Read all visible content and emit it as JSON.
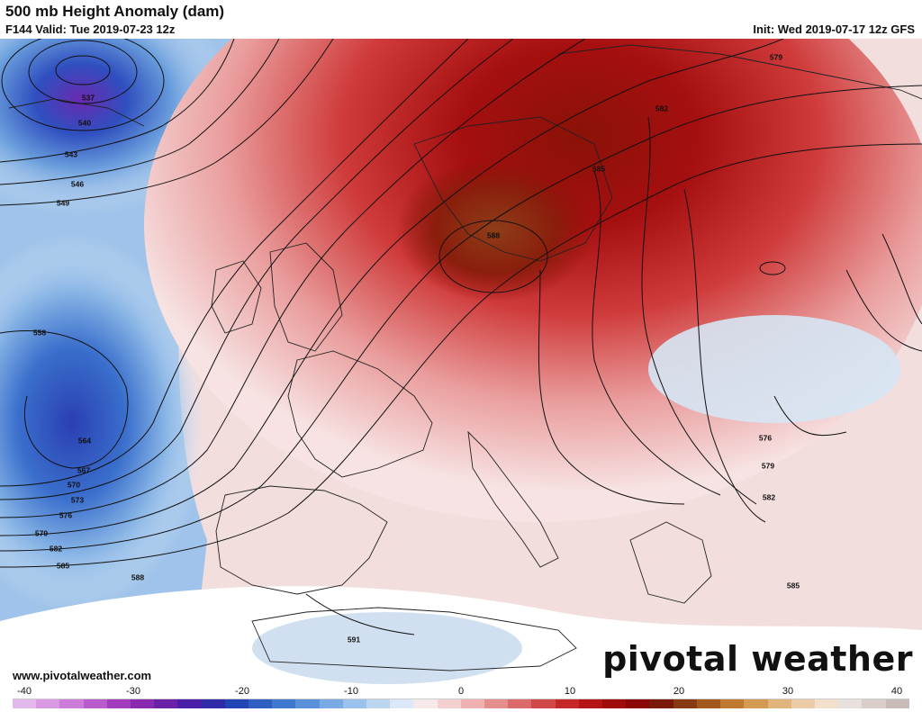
{
  "header": {
    "title": "500 mb Height Anomaly (dam)",
    "valid": "F144 Valid: Tue 2019-07-23 12z",
    "init": "Init: Wed 2019-07-17 12z GFS"
  },
  "footer": {
    "url": "www.pivotalweather.com",
    "brand": "pivotal weather"
  },
  "contour_labels": [
    "537",
    "540",
    "543",
    "546",
    "549",
    "558",
    "564",
    "567",
    "570",
    "573",
    "576",
    "579",
    "582",
    "585",
    "588",
    "591",
    "579",
    "582",
    "585",
    "588",
    "576",
    "579",
    "582",
    "585"
  ],
  "colorbar": {
    "ticks": [
      "-40",
      "-30",
      "-20",
      "-10",
      "0",
      "10",
      "20",
      "30",
      "40"
    ],
    "colors": [
      "#e3b8ec",
      "#d99ae3",
      "#cc7bd9",
      "#b95bcc",
      "#a43dbd",
      "#8a2ab0",
      "#6b20a8",
      "#4a1ea6",
      "#2f2ba8",
      "#2344b4",
      "#2f5ec2",
      "#3f78cf",
      "#5a91da",
      "#79aae3",
      "#9bc2ec",
      "#bcd6f2",
      "#dbe8f7",
      "#f6e9e9",
      "#f4d0d0",
      "#eeb0b0",
      "#e58e8e",
      "#db6b6b",
      "#d04848",
      "#c42828",
      "#b51414",
      "#a00c0c",
      "#8b0606",
      "#7a1a0a",
      "#8a3a12",
      "#a4581c",
      "#bf7a30",
      "#d49a52",
      "#e2b47c",
      "#ebcca6",
      "#f2e0cc",
      "#e8e0dc",
      "#d8cdc9",
      "#c9bcb8"
    ]
  }
}
